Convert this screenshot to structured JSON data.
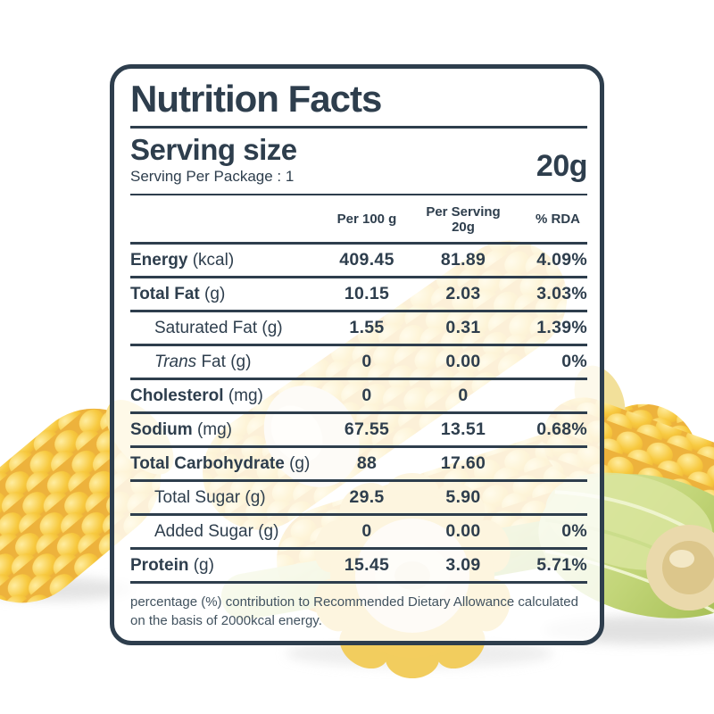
{
  "label": {
    "title": "Nutrition Facts",
    "serving_size_label": "Serving size",
    "serving_size_value": "20g",
    "serving_per_package": "Serving Per Package : 1",
    "columns": [
      {
        "line1": "Per 100 g",
        "line2": ""
      },
      {
        "line1": "Per Serving",
        "line2": "20g"
      },
      {
        "line1": "% RDA",
        "line2": ""
      }
    ],
    "footer": "percentage (%) contribution to Recommended Dietary Allowance calculated on the basis of 2000kcal energy."
  },
  "rows": [
    {
      "italic_prefix": "",
      "name": "Energy",
      "unit": "(kcal)",
      "bold": true,
      "indent": false,
      "per_100g": "409.45",
      "per_serving": "81.89",
      "rda": "4.09%"
    },
    {
      "italic_prefix": "",
      "name": "Total Fat",
      "unit": "(g)",
      "bold": true,
      "indent": false,
      "per_100g": "10.15",
      "per_serving": "2.03",
      "rda": "3.03%"
    },
    {
      "italic_prefix": "",
      "name": "Saturated Fat",
      "unit": "(g)",
      "bold": false,
      "indent": true,
      "per_100g": "1.55",
      "per_serving": "0.31",
      "rda": "1.39%"
    },
    {
      "italic_prefix": "Trans",
      "name": "Fat",
      "unit": "(g)",
      "bold": false,
      "indent": true,
      "per_100g": "0",
      "per_serving": "0.00",
      "rda": "0%"
    },
    {
      "italic_prefix": "",
      "name": "Cholesterol",
      "unit": "(mg)",
      "bold": true,
      "indent": false,
      "per_100g": "0",
      "per_serving": "0",
      "rda": ""
    },
    {
      "italic_prefix": "",
      "name": "Sodium",
      "unit": "(mg)",
      "bold": true,
      "indent": false,
      "per_100g": "67.55",
      "per_serving": "13.51",
      "rda": "0.68%"
    },
    {
      "italic_prefix": "",
      "name": "Total Carbohydrate",
      "unit": "(g)",
      "bold": true,
      "indent": false,
      "per_100g": "88",
      "per_serving": "17.60",
      "rda": ""
    },
    {
      "italic_prefix": "",
      "name": "Total Sugar",
      "unit": "(g)",
      "bold": false,
      "indent": true,
      "per_100g": "29.5",
      "per_serving": "5.90",
      "rda": ""
    },
    {
      "italic_prefix": "",
      "name": "Added Sugar",
      "unit": "(g)",
      "bold": false,
      "indent": true,
      "per_100g": "0",
      "per_serving": "0.00",
      "rda": "0%"
    },
    {
      "italic_prefix": "",
      "name": "Protein",
      "unit": "(g)",
      "bold": true,
      "indent": false,
      "per_100g": "15.45",
      "per_serving": "3.09",
      "rda": "5.71%"
    }
  ],
  "colors": {
    "ink": "#2e3e4d",
    "footer_ink": "#41525f",
    "card_overlay": "rgba(255,255,255,0.80)",
    "corn_yellow": "#f7c93f",
    "corn_highlight": "#ffeda0",
    "corn_shadow": "#e8a92f",
    "husk_green": "#b9ce6e",
    "husk_light": "#dce8a6"
  }
}
